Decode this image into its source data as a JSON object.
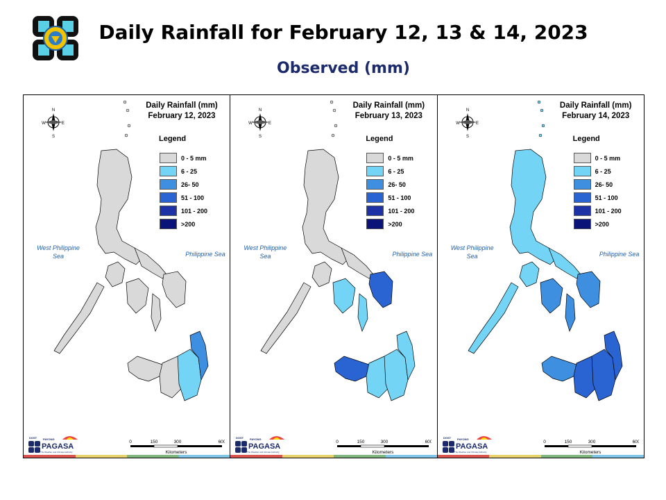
{
  "header": {
    "title": "Daily Rainfall for February 12, 13 & 14, 2023",
    "subtitle": "Observed (mm)"
  },
  "legend": {
    "title": "Legend",
    "items": [
      {
        "label": "0 - 5 mm",
        "color": "#d9d9d9"
      },
      {
        "label": "6 - 25",
        "color": "#74d4f5"
      },
      {
        "label": "26- 50",
        "color": "#3f8fe0"
      },
      {
        "label": "51 - 100",
        "color": "#2a63d2"
      },
      {
        "label": "101 - 200",
        "color": "#1c32a5"
      },
      {
        "label": ">200",
        "color": "#0a1378"
      }
    ]
  },
  "seas": {
    "west": "West Philippine Sea",
    "east": "Philippine Sea"
  },
  "compass": {
    "n": "N",
    "s": "S",
    "e": "E",
    "w": "W"
  },
  "scalebar": {
    "ticks": [
      "0",
      "150",
      "300",
      "600"
    ],
    "unit": "Kilometers"
  },
  "branding": {
    "org": "PAGASA",
    "small": "DOST",
    "tag": "PAYONG",
    "motto": "The Weather and Climate Authority"
  },
  "stripe_colors": [
    "#d9534f",
    "#e8d36a",
    "#7fb77e",
    "#7fc6e8"
  ],
  "panels": [
    {
      "heading": "Daily Rainfall (mm)",
      "date": "February 12, 2023",
      "rain": {
        "luzon": "0 - 5 mm",
        "visayas": "0 - 5 mm",
        "samar": "0 - 5 mm",
        "mindanao_west": "0 - 5 mm",
        "mindanao_central": "0 - 5 mm",
        "mindanao_east": "6 - 25",
        "mindanao_east_coast": "26- 50",
        "palawan": "0 - 5 mm"
      }
    },
    {
      "heading": "Daily Rainfall (mm)",
      "date": "February 13, 2023",
      "rain": {
        "luzon": "0 - 5 mm",
        "visayas": "6 - 25",
        "samar": "51 - 100",
        "mindanao_west": "51 - 100",
        "mindanao_central": "6 - 25",
        "mindanao_east": "6 - 25",
        "mindanao_east_coast": "6 - 25",
        "palawan": "0 - 5 mm"
      }
    },
    {
      "heading": "Daily Rainfall (mm)",
      "date": "February 14, 2023",
      "rain": {
        "luzon": "6 - 25",
        "visayas": "26- 50",
        "samar": "26- 50",
        "mindanao_west": "26- 50",
        "mindanao_central": "51 - 100",
        "mindanao_east": "51 - 100",
        "mindanao_east_coast": "51 - 100",
        "palawan": "6 - 25"
      }
    }
  ]
}
